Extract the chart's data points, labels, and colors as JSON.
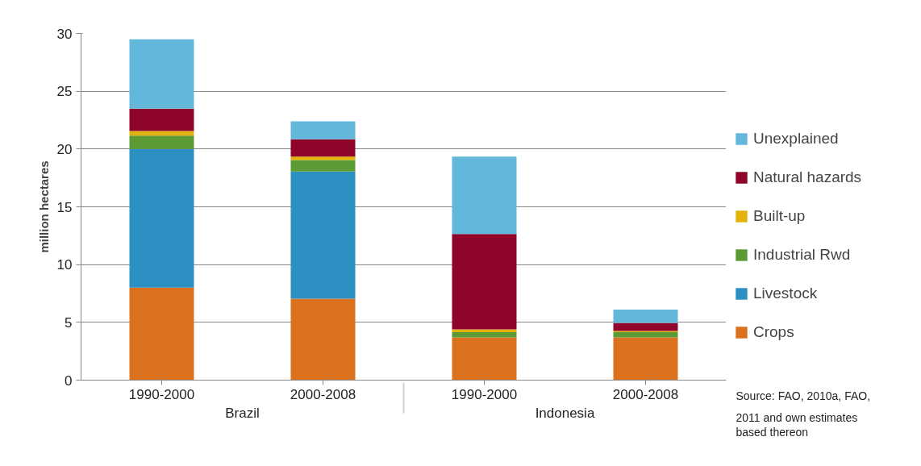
{
  "chart_data": {
    "type": "bar",
    "stacked": true,
    "ylabel": "million hectares",
    "categories": [
      "1990-2000",
      "2000-2008",
      "1990-2000",
      "2000-2008"
    ],
    "series": [
      {
        "name": "Crops",
        "color": "#db711c",
        "values": [
          8.0,
          7.05,
          3.7,
          3.7
        ]
      },
      {
        "name": "Livestock",
        "color": "#2d90c3",
        "values": [
          12.0,
          11.0,
          0,
          0
        ]
      },
      {
        "name": "Industrial Rwd",
        "color": "#5b9a35",
        "values": [
          1.15,
          1.0,
          0.45,
          0.45
        ]
      },
      {
        "name": "Built-up",
        "color": "#e2b40b",
        "values": [
          0.4,
          0.3,
          0.25,
          0.1
        ]
      },
      {
        "name": "Natural hazards",
        "color": "#8f042b",
        "values": [
          1.95,
          1.5,
          8.25,
          0.7
        ]
      },
      {
        "name": "Unexplained",
        "color": "#62b7da",
        "values": [
          6.0,
          1.55,
          6.7,
          1.15
        ]
      }
    ],
    "ylim": [
      0,
      30
    ],
    "yticks": [
      0,
      5,
      10,
      15,
      20,
      25,
      30
    ],
    "grid": "y",
    "legend": "right",
    "annotations": [
      "Brazil",
      "Indonesia",
      "Source: FAO, 2010a, FAO, 2011 and own estimates based thereon"
    ]
  }
}
